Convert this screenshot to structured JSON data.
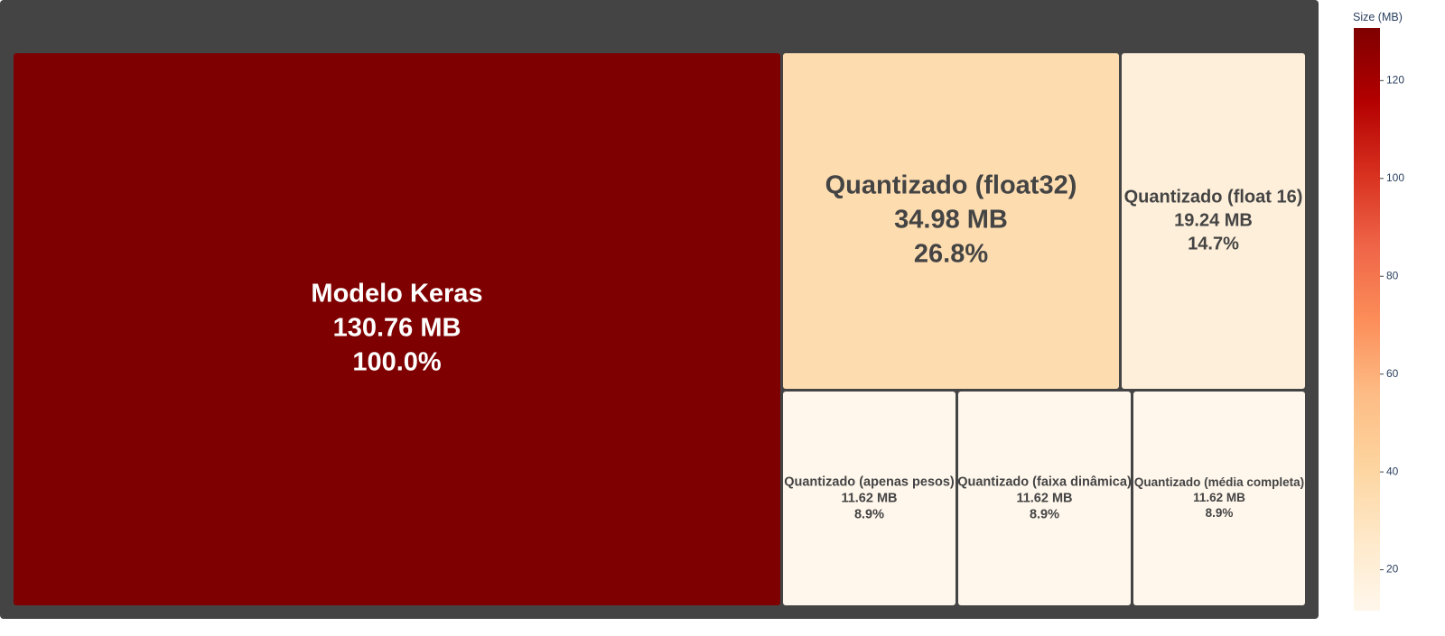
{
  "colors": {
    "background": "#444444",
    "scale": [
      "#fff7ec",
      "#fee8c8",
      "#fdd49e",
      "#fdbb84",
      "#fc8d59",
      "#ef6548",
      "#d7301f",
      "#b30000",
      "#7f0000"
    ],
    "text_light": "#ffffff",
    "text_dark": "#444444",
    "axis_text": "#2a3f5f"
  },
  "chart_data": {
    "type": "treemap",
    "title": "",
    "colorbar": {
      "title": "Size (MB)",
      "range": [
        11.62,
        130.76
      ],
      "ticks": [
        20,
        40,
        60,
        80,
        100,
        120
      ]
    },
    "nodes": [
      {
        "label": "Modelo Keras",
        "size_text": "130.76 MB",
        "percent_text": "100.0%",
        "value": 130.76
      },
      {
        "label": "Quantizado (float32)",
        "size_text": "34.98 MB",
        "percent_text": "26.8%",
        "value": 34.98
      },
      {
        "label": "Quantizado (float 16)",
        "size_text": "19.24 MB",
        "percent_text": "14.7%",
        "value": 19.24
      },
      {
        "label": "Quantizado (apenas pesos)",
        "size_text": "11.62 MB",
        "percent_text": "8.9%",
        "value": 11.62
      },
      {
        "label": "Quantizado (faixa dinâmica)",
        "size_text": "11.62 MB",
        "percent_text": "8.9%",
        "value": 11.62
      },
      {
        "label": "Quantizado (média completa)",
        "size_text": "11.62 MB",
        "percent_text": "8.9%",
        "value": 11.62
      }
    ]
  }
}
